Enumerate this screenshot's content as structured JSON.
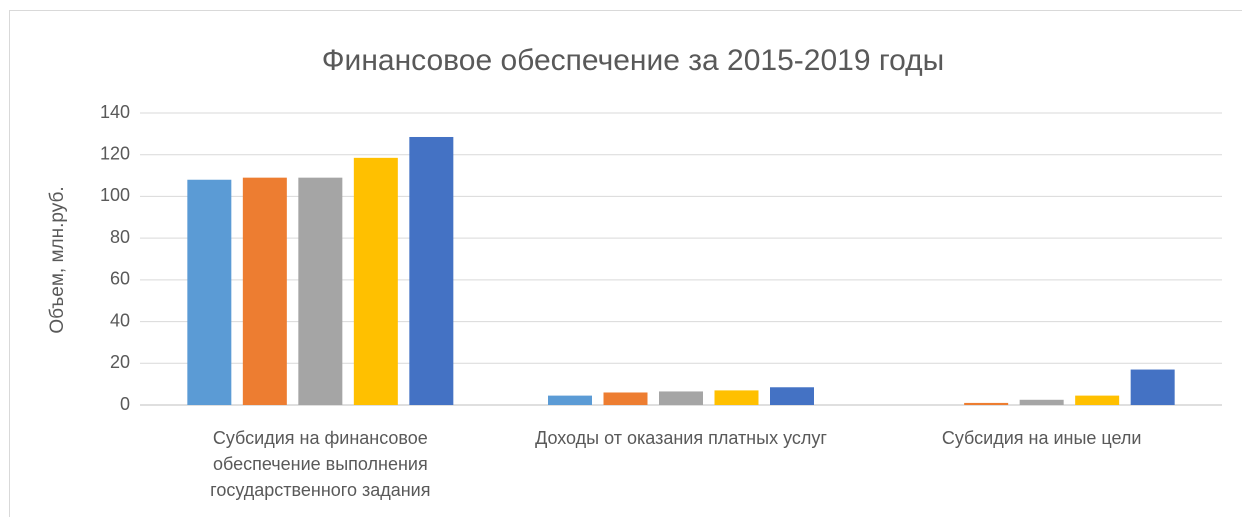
{
  "chart_data": {
    "type": "bar",
    "title": "Финансовое обеспечение за 2015-2019 годы",
    "y_label": "Объем, млн.руб.",
    "categories": [
      "Субсидия на финансовое обеспечение выполнения государственного задания",
      "Доходы от оказания платных услуг",
      "Субсидия на иные цели"
    ],
    "series": [
      {
        "color": "#5b9bd5",
        "values": [
          108,
          4.5,
          0
        ]
      },
      {
        "color": "#ed7d31",
        "values": [
          109,
          6,
          1
        ]
      },
      {
        "color": "#a5a5a5",
        "values": [
          109,
          6.5,
          2.5
        ]
      },
      {
        "color": "#ffc000",
        "values": [
          118.5,
          7,
          4.5
        ]
      },
      {
        "color": "#4472c4",
        "values": [
          128.5,
          8.5,
          17
        ]
      }
    ],
    "ylim": [
      0,
      140
    ],
    "yticks": [
      0,
      20,
      40,
      60,
      80,
      100,
      120,
      140
    ],
    "grid": true
  }
}
